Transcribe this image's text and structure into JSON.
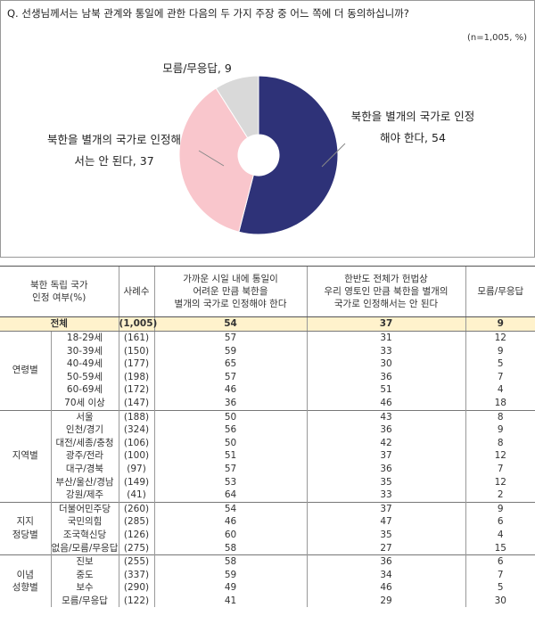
{
  "chart_data": {
    "type": "pie",
    "title": "Q. 선생님께서는 남북 관계와 통일에 관한 다음의 두 가지 주장 중 어느 쪽에 더 동의하십니까?",
    "note": "(n=1,005, %)",
    "values": [
      54,
      37,
      9
    ],
    "value_labels": [
      "북한을 별개의 국가로 인정해야 한다, 54",
      "북한을 별개의 국가로 인정해서는 안 된다, 37",
      "모름/무응답, 9"
    ],
    "colors": [
      "#2e3278",
      "#f9c6cc",
      "#d9d9d9"
    ]
  },
  "table": {
    "header": [
      "북한 독립 국가\n인정 여부(%)",
      "사례수",
      "가까운 시일 내에 통일이\n어려운 만큼 북한을\n별개의 국가로 인정해야 한다",
      "한반도 전체가 헌법상\n우리 영토인 만큼 북한을 별개의\n국가로 인정해서는 안 된다",
      "모름/무응답"
    ],
    "total": {
      "label": "전체",
      "n": "(1,005)",
      "values": [
        54,
        37,
        9
      ]
    },
    "groups": [
      {
        "label": "연령별",
        "rows": [
          {
            "label": "18-29세",
            "n": "(161)",
            "values": [
              57,
              31,
              12
            ]
          },
          {
            "label": "30-39세",
            "n": "(150)",
            "values": [
              59,
              33,
              9
            ]
          },
          {
            "label": "40-49세",
            "n": "(177)",
            "values": [
              65,
              30,
              5
            ]
          },
          {
            "label": "50-59세",
            "n": "(198)",
            "values": [
              57,
              36,
              7
            ]
          },
          {
            "label": "60-69세",
            "n": "(172)",
            "values": [
              46,
              51,
              4
            ]
          },
          {
            "label": "70세 이상",
            "n": "(147)",
            "values": [
              36,
              46,
              18
            ]
          }
        ]
      },
      {
        "label": "지역별",
        "rows": [
          {
            "label": "서울",
            "n": "(188)",
            "values": [
              50,
              43,
              8
            ]
          },
          {
            "label": "인천/경기",
            "n": "(324)",
            "values": [
              56,
              36,
              9
            ]
          },
          {
            "label": "대전/세종/충청",
            "n": "(106)",
            "values": [
              50,
              42,
              8
            ]
          },
          {
            "label": "광주/전라",
            "n": "(100)",
            "values": [
              51,
              37,
              12
            ]
          },
          {
            "label": "대구/경북",
            "n": "(97)",
            "values": [
              57,
              36,
              7
            ]
          },
          {
            "label": "부산/울산/경남",
            "n": "(149)",
            "values": [
              53,
              35,
              12
            ]
          },
          {
            "label": "강원/제주",
            "n": "(41)",
            "values": [
              64,
              33,
              2
            ]
          }
        ]
      },
      {
        "label": "지지\n정당별",
        "rows": [
          {
            "label": "더불어민주당",
            "n": "(260)",
            "values": [
              54,
              37,
              9
            ]
          },
          {
            "label": "국민의힘",
            "n": "(285)",
            "values": [
              46,
              47,
              6
            ]
          },
          {
            "label": "조국혁신당",
            "n": "(126)",
            "values": [
              60,
              35,
              4
            ]
          },
          {
            "label": "없음/모름/무응답",
            "n": "(275)",
            "values": [
              58,
              27,
              15
            ]
          }
        ]
      },
      {
        "label": "이념\n성향별",
        "rows": [
          {
            "label": "진보",
            "n": "(255)",
            "values": [
              58,
              36,
              6
            ]
          },
          {
            "label": "중도",
            "n": "(337)",
            "values": [
              59,
              34,
              7
            ]
          },
          {
            "label": "보수",
            "n": "(290)",
            "values": [
              49,
              46,
              5
            ]
          },
          {
            "label": "모름/무응답",
            "n": "(122)",
            "values": [
              41,
              29,
              30
            ]
          }
        ]
      }
    ]
  }
}
